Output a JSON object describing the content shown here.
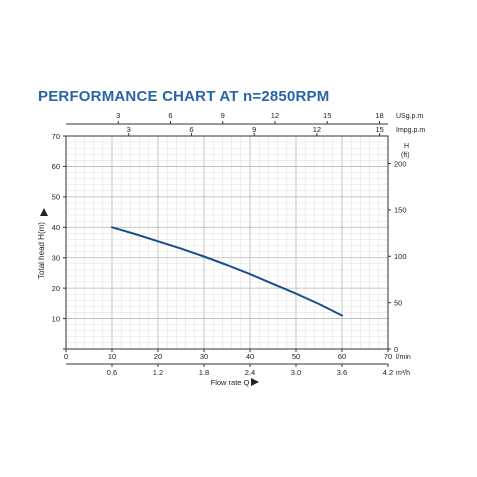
{
  "chart_data": {
    "type": "line",
    "title": "PERFORMANCE CHART AT n=2850RPM",
    "ylabel": "Total head H(m)",
    "xlabel": "Flow rate Q",
    "series": [
      {
        "color": "#1c4f8a",
        "x": [
          10,
          15,
          20,
          25,
          30,
          35,
          40,
          45,
          50,
          55,
          60
        ],
        "y": [
          40,
          37.8,
          35.4,
          33,
          30.4,
          27.6,
          24.6,
          21.4,
          18.2,
          14.8,
          11
        ]
      }
    ],
    "x_bottom": {
      "unit": "l/min",
      "range": [
        0,
        70
      ],
      "ticks": [
        0,
        10,
        20,
        30,
        40,
        50,
        60,
        70
      ]
    },
    "x_m3h": {
      "unit": "m³/h",
      "range": [
        0,
        4.2
      ],
      "ticks": [
        0.6,
        1.2,
        1.8,
        2.4,
        3.0,
        3.6,
        4.2
      ],
      "tick_labels": [
        "0.6",
        "1.2",
        "1.8",
        "2.4",
        "3.0",
        "3.6",
        "4.2"
      ]
    },
    "x_usgpm": {
      "unit": "USg.p.m",
      "range": [
        0,
        18.49
      ],
      "ticks": [
        3,
        6,
        9,
        12,
        15,
        18
      ]
    },
    "x_impgpm": {
      "unit": "Impg.p.m",
      "range": [
        0,
        15.4
      ],
      "ticks": [
        3,
        6,
        9,
        12,
        15
      ]
    },
    "y_left": {
      "unit": "m",
      "range": [
        0,
        70
      ],
      "ticks": [
        0,
        10,
        20,
        30,
        40,
        50,
        60,
        70
      ],
      "tick_labels": [
        "",
        "10",
        "20",
        "30",
        "40",
        "50",
        "60",
        "70"
      ]
    },
    "y_right": {
      "title": "H",
      "unit": "(ft)",
      "range": [
        0,
        229.7
      ],
      "ticks": [
        0,
        50,
        100,
        150,
        200
      ]
    },
    "grid": true
  }
}
